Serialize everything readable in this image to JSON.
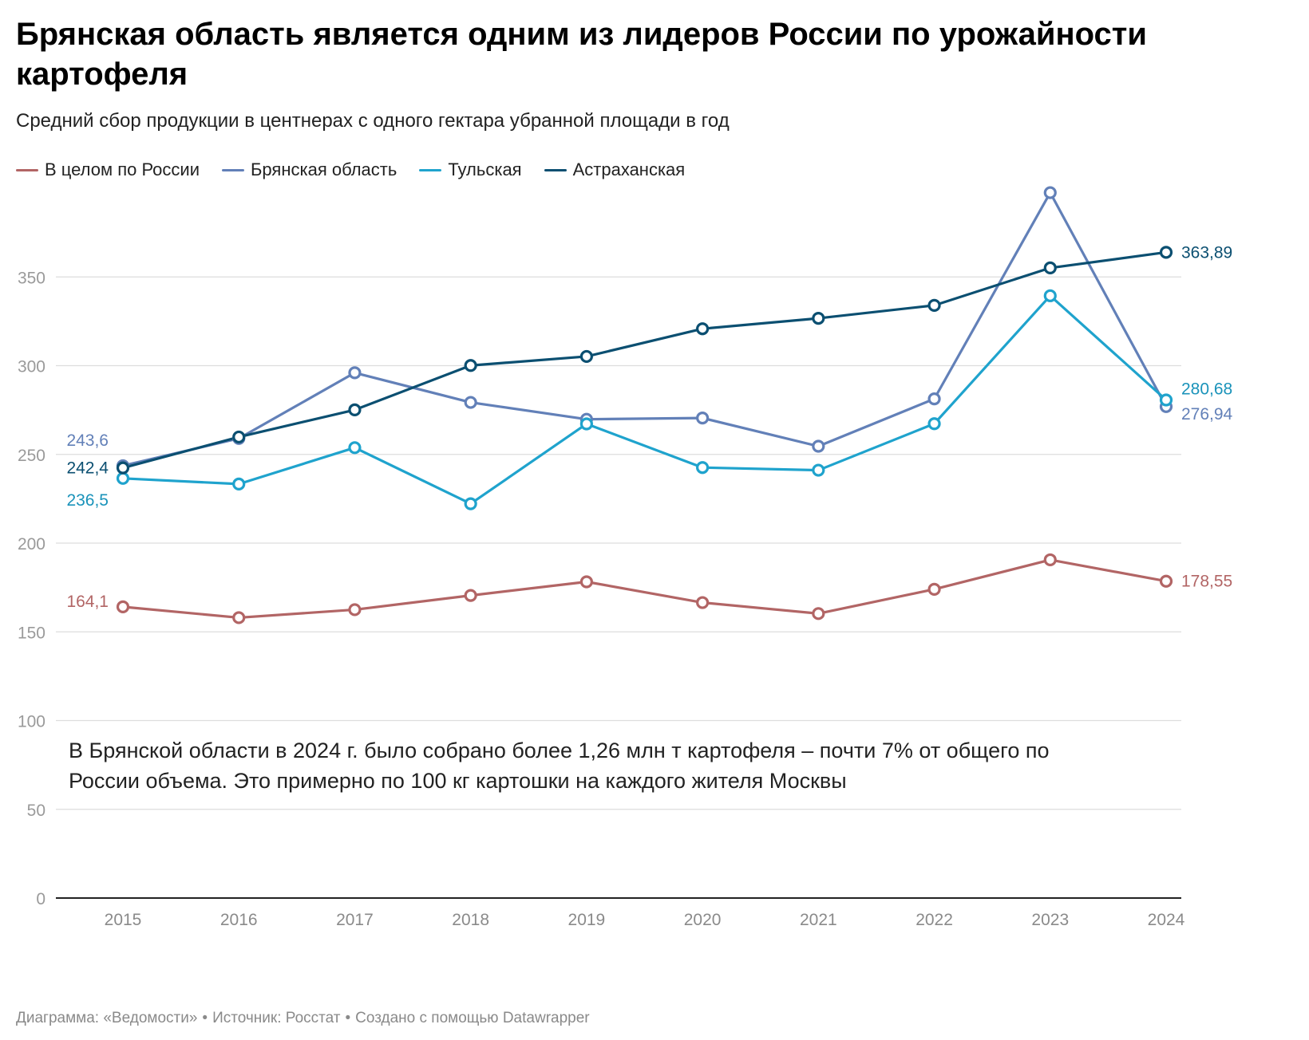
{
  "title": "Брянская область является одним из лидеров России по урожайности картофеля",
  "subtitle": "Средний сбор продукции в центнерах с одного гектара убранной площади в год",
  "annotation": {
    "line1": "В Брянской области в 2024 г. было собрано более 1,26 млн т картофеля – почти 7% от общего по",
    "line2": "России объема. Это примерно по 100 кг картошки на каждого жителя Москвы"
  },
  "footer": {
    "chart_by": "Диаграмма: «Ведомости»",
    "source": "Источник: Росстат",
    "made_with": "Создано с помощью Datawrapper",
    "separator": "•"
  },
  "chart_data": {
    "type": "line",
    "x": [
      "2015",
      "2016",
      "2017",
      "2018",
      "2019",
      "2020",
      "2021",
      "2022",
      "2023",
      "2024"
    ],
    "ylim": [
      0,
      400
    ],
    "yticks": [
      0,
      50,
      100,
      150,
      200,
      250,
      300,
      350
    ],
    "grid": true,
    "legend_position": "top-left",
    "series": [
      {
        "name": "В целом по России",
        "color": "#b26565",
        "values": [
          164.1,
          158,
          162.5,
          170.5,
          178.2,
          166.5,
          160.3,
          174,
          190.6,
          178.55
        ],
        "start_label": "164,1",
        "end_label": "178,55"
      },
      {
        "name": "Брянская область",
        "color": "#6280b8",
        "values": [
          243.6,
          259,
          296,
          279.3,
          269.8,
          270.5,
          254.6,
          281.3,
          397.5,
          276.94
        ],
        "start_label": "243,6",
        "end_label": "276,94"
      },
      {
        "name": "Тульская",
        "color": "#1fa3cd",
        "values": [
          236.5,
          233.3,
          253.8,
          222.2,
          267.2,
          242.6,
          241.1,
          267.3,
          339.4,
          280.68
        ],
        "start_label": "236,5",
        "end_label": "280,68"
      },
      {
        "name": "Астраханская",
        "color": "#0b4f71",
        "values": [
          242.4,
          259.8,
          275.1,
          300.1,
          305.2,
          320.8,
          326.7,
          334,
          355.1,
          363.89
        ],
        "start_label": "242,4",
        "end_label": "363,89"
      }
    ]
  }
}
